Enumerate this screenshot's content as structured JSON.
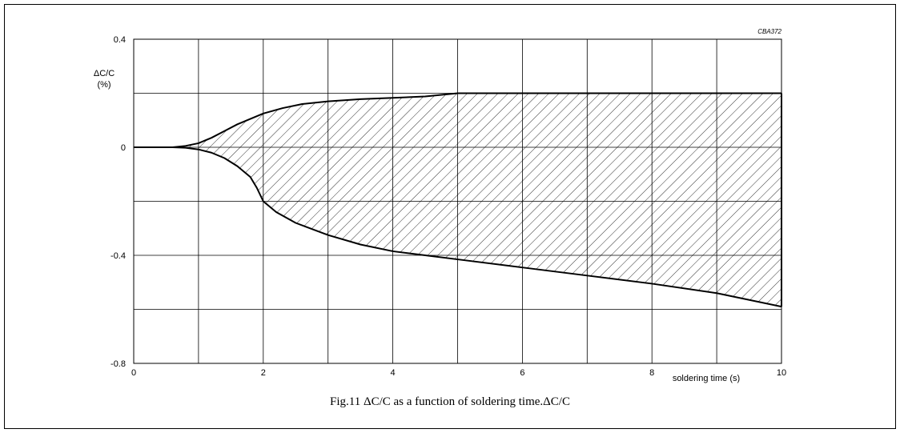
{
  "figure_code": "CBA372",
  "caption": "Fig.11  ΔC/C as a function of soldering time.ΔC/C",
  "chart_data": {
    "type": "area",
    "xlabel": "soldering time (s)",
    "ylabel": "ΔC/C",
    "ylabel_unit": "(%)",
    "xlim": [
      0,
      10
    ],
    "ylim": [
      -0.8,
      0.4
    ],
    "x_ticks": [
      0,
      2,
      4,
      6,
      8,
      10
    ],
    "x_tick_labels": [
      "0",
      "2",
      "4",
      "6",
      "8",
      "10"
    ],
    "y_ticks": [
      0.4,
      0,
      -0.4,
      -0.8
    ],
    "y_tick_labels": [
      "0.4",
      "0",
      "-0.4",
      "-0.8"
    ],
    "x_grid": [
      1,
      2,
      3,
      4,
      5,
      6,
      7,
      8,
      9,
      10
    ],
    "y_grid": [
      0.4,
      0.2,
      0,
      -0.2,
      -0.4,
      -0.6
    ],
    "grid": true,
    "fill": "hatched",
    "series": [
      {
        "role": "upper",
        "x": [
          0,
          0.6,
          0.8,
          1.0,
          1.2,
          1.4,
          1.6,
          1.8,
          2.0,
          2.3,
          2.6,
          3.0,
          3.5,
          4.0,
          4.5,
          5.0,
          10.0
        ],
        "values": [
          0,
          0,
          0.005,
          0.015,
          0.035,
          0.06,
          0.085,
          0.105,
          0.125,
          0.145,
          0.16,
          0.17,
          0.178,
          0.183,
          0.188,
          0.2,
          0.2
        ]
      },
      {
        "role": "lower",
        "x": [
          0,
          0.6,
          0.8,
          1.0,
          1.2,
          1.4,
          1.6,
          1.8,
          1.9,
          2.0,
          2.2,
          2.5,
          3.0,
          3.5,
          4.0,
          4.5,
          5.0,
          6.0,
          7.0,
          8.0,
          9.0,
          10.0
        ],
        "values": [
          0,
          0,
          -0.002,
          -0.008,
          -0.02,
          -0.04,
          -0.07,
          -0.11,
          -0.15,
          -0.2,
          -0.24,
          -0.28,
          -0.325,
          -0.36,
          -0.385,
          -0.4,
          -0.415,
          -0.445,
          -0.475,
          -0.505,
          -0.54,
          -0.59
        ]
      }
    ]
  }
}
